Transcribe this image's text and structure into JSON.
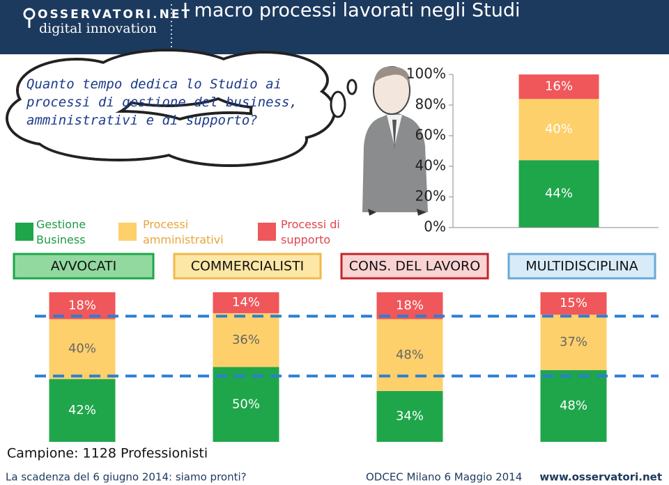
{
  "header": {
    "logo": "OSSERVATORI.NET",
    "logo_sub": "digital innovation",
    "title": "I macro processi lavorati negli Studi"
  },
  "question": "Quanto tempo dedica lo Studio ai processi di gestione del business, amministrativi e di supporto?",
  "chart_data": [
    {
      "type": "bar",
      "stacked": true,
      "categories": [
        null
      ],
      "series": [
        {
          "name": "Gestione Business",
          "color": "#1fa64a",
          "values": [
            44
          ],
          "value_labels": [
            "44%"
          ]
        },
        {
          "name": "Processi amministrativi",
          "color": "#fdd06b",
          "values": [
            40
          ],
          "value_labels": [
            "40%"
          ]
        },
        {
          "name": "Processi di supporto",
          "color": "#f0575a",
          "values": [
            16
          ],
          "value_labels": [
            "16%"
          ]
        }
      ],
      "ylim": [
        0,
        100
      ],
      "yticks": [
        {
          "value": 0,
          "label": "0%"
        },
        {
          "value": 20,
          "label": "20%"
        },
        {
          "value": 40,
          "label": "40%"
        },
        {
          "value": 60,
          "label": "60%"
        },
        {
          "value": 80,
          "label": "80%"
        },
        {
          "value": 100,
          "label": "100%"
        }
      ]
    },
    {
      "type": "bar",
      "stacked": true,
      "categories": [
        "AVVOCATI",
        "COMMERCIALISTI",
        "CONS. DEL LAVORO",
        "MULTIDISCIPLINA"
      ],
      "series": [
        {
          "color": "#1fa64a",
          "values": [
            42,
            50,
            34,
            48
          ],
          "value_labels": [
            "42%",
            "50%",
            "34%",
            "48%"
          ]
        },
        {
          "color": "#fdd06b",
          "values": [
            40,
            36,
            48,
            37
          ],
          "value_labels": [
            "40%",
            "36%",
            "48%",
            "37%"
          ]
        },
        {
          "color": "#f0575a",
          "values": [
            18,
            14,
            18,
            15
          ],
          "value_labels": [
            "18%",
            "14%",
            "18%",
            "15%"
          ]
        }
      ],
      "ylim": [
        0,
        100
      ]
    }
  ],
  "sample": "Campione: 1128 Professionisti",
  "footer": {
    "left": "La scadenza del 6 giugno 2014: siamo pronti?",
    "center": "ODCEC Milano 6 Maggio 2014",
    "right": "www.osservatori.net"
  }
}
